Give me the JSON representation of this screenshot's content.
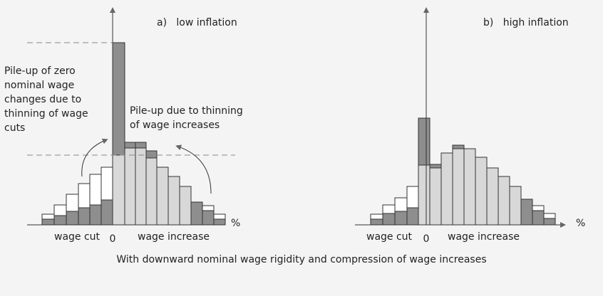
{
  "panels": [
    {
      "title": "a)   low inflation",
      "annotations": [
        "Pile-up of zero",
        "nominal wage",
        "changes due to",
        "thinning of wage",
        "cuts"
      ],
      "annotations_right": [
        "Pile-up due to thinning",
        "of wage increases"
      ],
      "x_left": "wage cut",
      "x_zero": "0",
      "x_right": "wage increase",
      "unit": "%"
    },
    {
      "title": "b)   high inflation",
      "x_left": "wage cut",
      "x_zero": "0",
      "x_right": "wage increase",
      "unit": "%"
    }
  ],
  "caption": "With downward nominal wage rigidity and compression of wage increases"
}
